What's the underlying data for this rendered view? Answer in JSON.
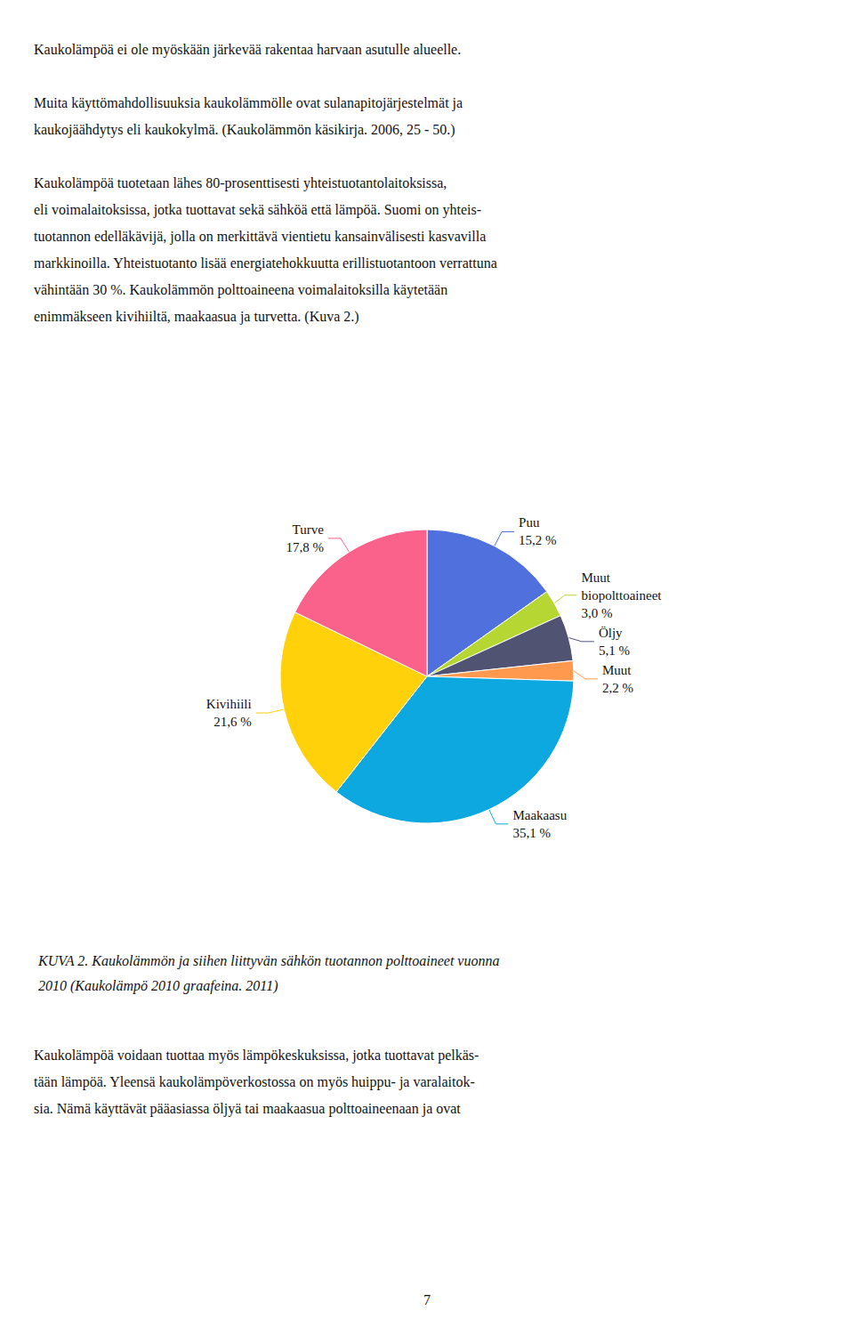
{
  "chart_data": {
    "type": "pie",
    "title": "KUVA 2. Kaukolämmön ja siihen liittyvän sähkön tuotannon polttoaineet vuonna\n2010 (Kaukolämpö 2010 graafeina. 2011)",
    "categories": [
      "Puu",
      "Muut\nbiopolttoaineet",
      "Öljy",
      "Muut",
      "Maakaasu",
      "Kivihiili",
      "Turve"
    ],
    "values": [
      15.2,
      3.0,
      5.1,
      2.2,
      35.1,
      21.6,
      17.8
    ],
    "value_labels": [
      "15,2 %",
      "3,0 %",
      "5,1 %",
      "2,2 %",
      "35,1 %",
      "21,6 %",
      "17,8 %"
    ],
    "data_labels": true,
    "annotations": {
      "above": [
        "Kaukolämpöä ei ole myöskään järkevää rakentaa harvaan asutulle alueelle.",
        "Muita käyttömahdollisuuksia kaukolämmölle ovat sulanapitojärjestelmät ja\nkaukojäähdytys eli kaukokylmä. (Kaukolämmön käsikirja. 2006, 25 - 50.)",
        "Kaukolämpöä tuotetaan lähes 80-prosenttisesti yhteistuotantolaitoksissa,\neli voimalaitoksissa, jotka tuottavat sekä sähköä että lämpöä. Suomi on yhteis-\ntuotannon edelläkävijä, jolla on merkittävä vientietu kansainvälisesti kasvavilla\nmarkkinoilla. Yhteistuotanto lisää energiatehokkuutta erillistuotantoon verrattuna\nvähintään 30 %. Kaukolämmön polttoaineena voimalaitoksilla käytetään\nenimmäkseen kivihiiltä, maakaasua ja turvetta. (Kuva 2.)"
      ],
      "below": [
        "Kaukolämpöä voidaan tuottaa myös lämpökeskuksissa, jotka tuottavat pelkäs-\ntään lämpöä. Yleensä kaukolämpöverkostossa on myös huippu- ja varalaitok-\nsia. Nämä käyttävät pääasiassa öljyä tai maakaasua polttoaineenaan ja ovat"
      ],
      "footer": [
        "7"
      ]
    }
  }
}
